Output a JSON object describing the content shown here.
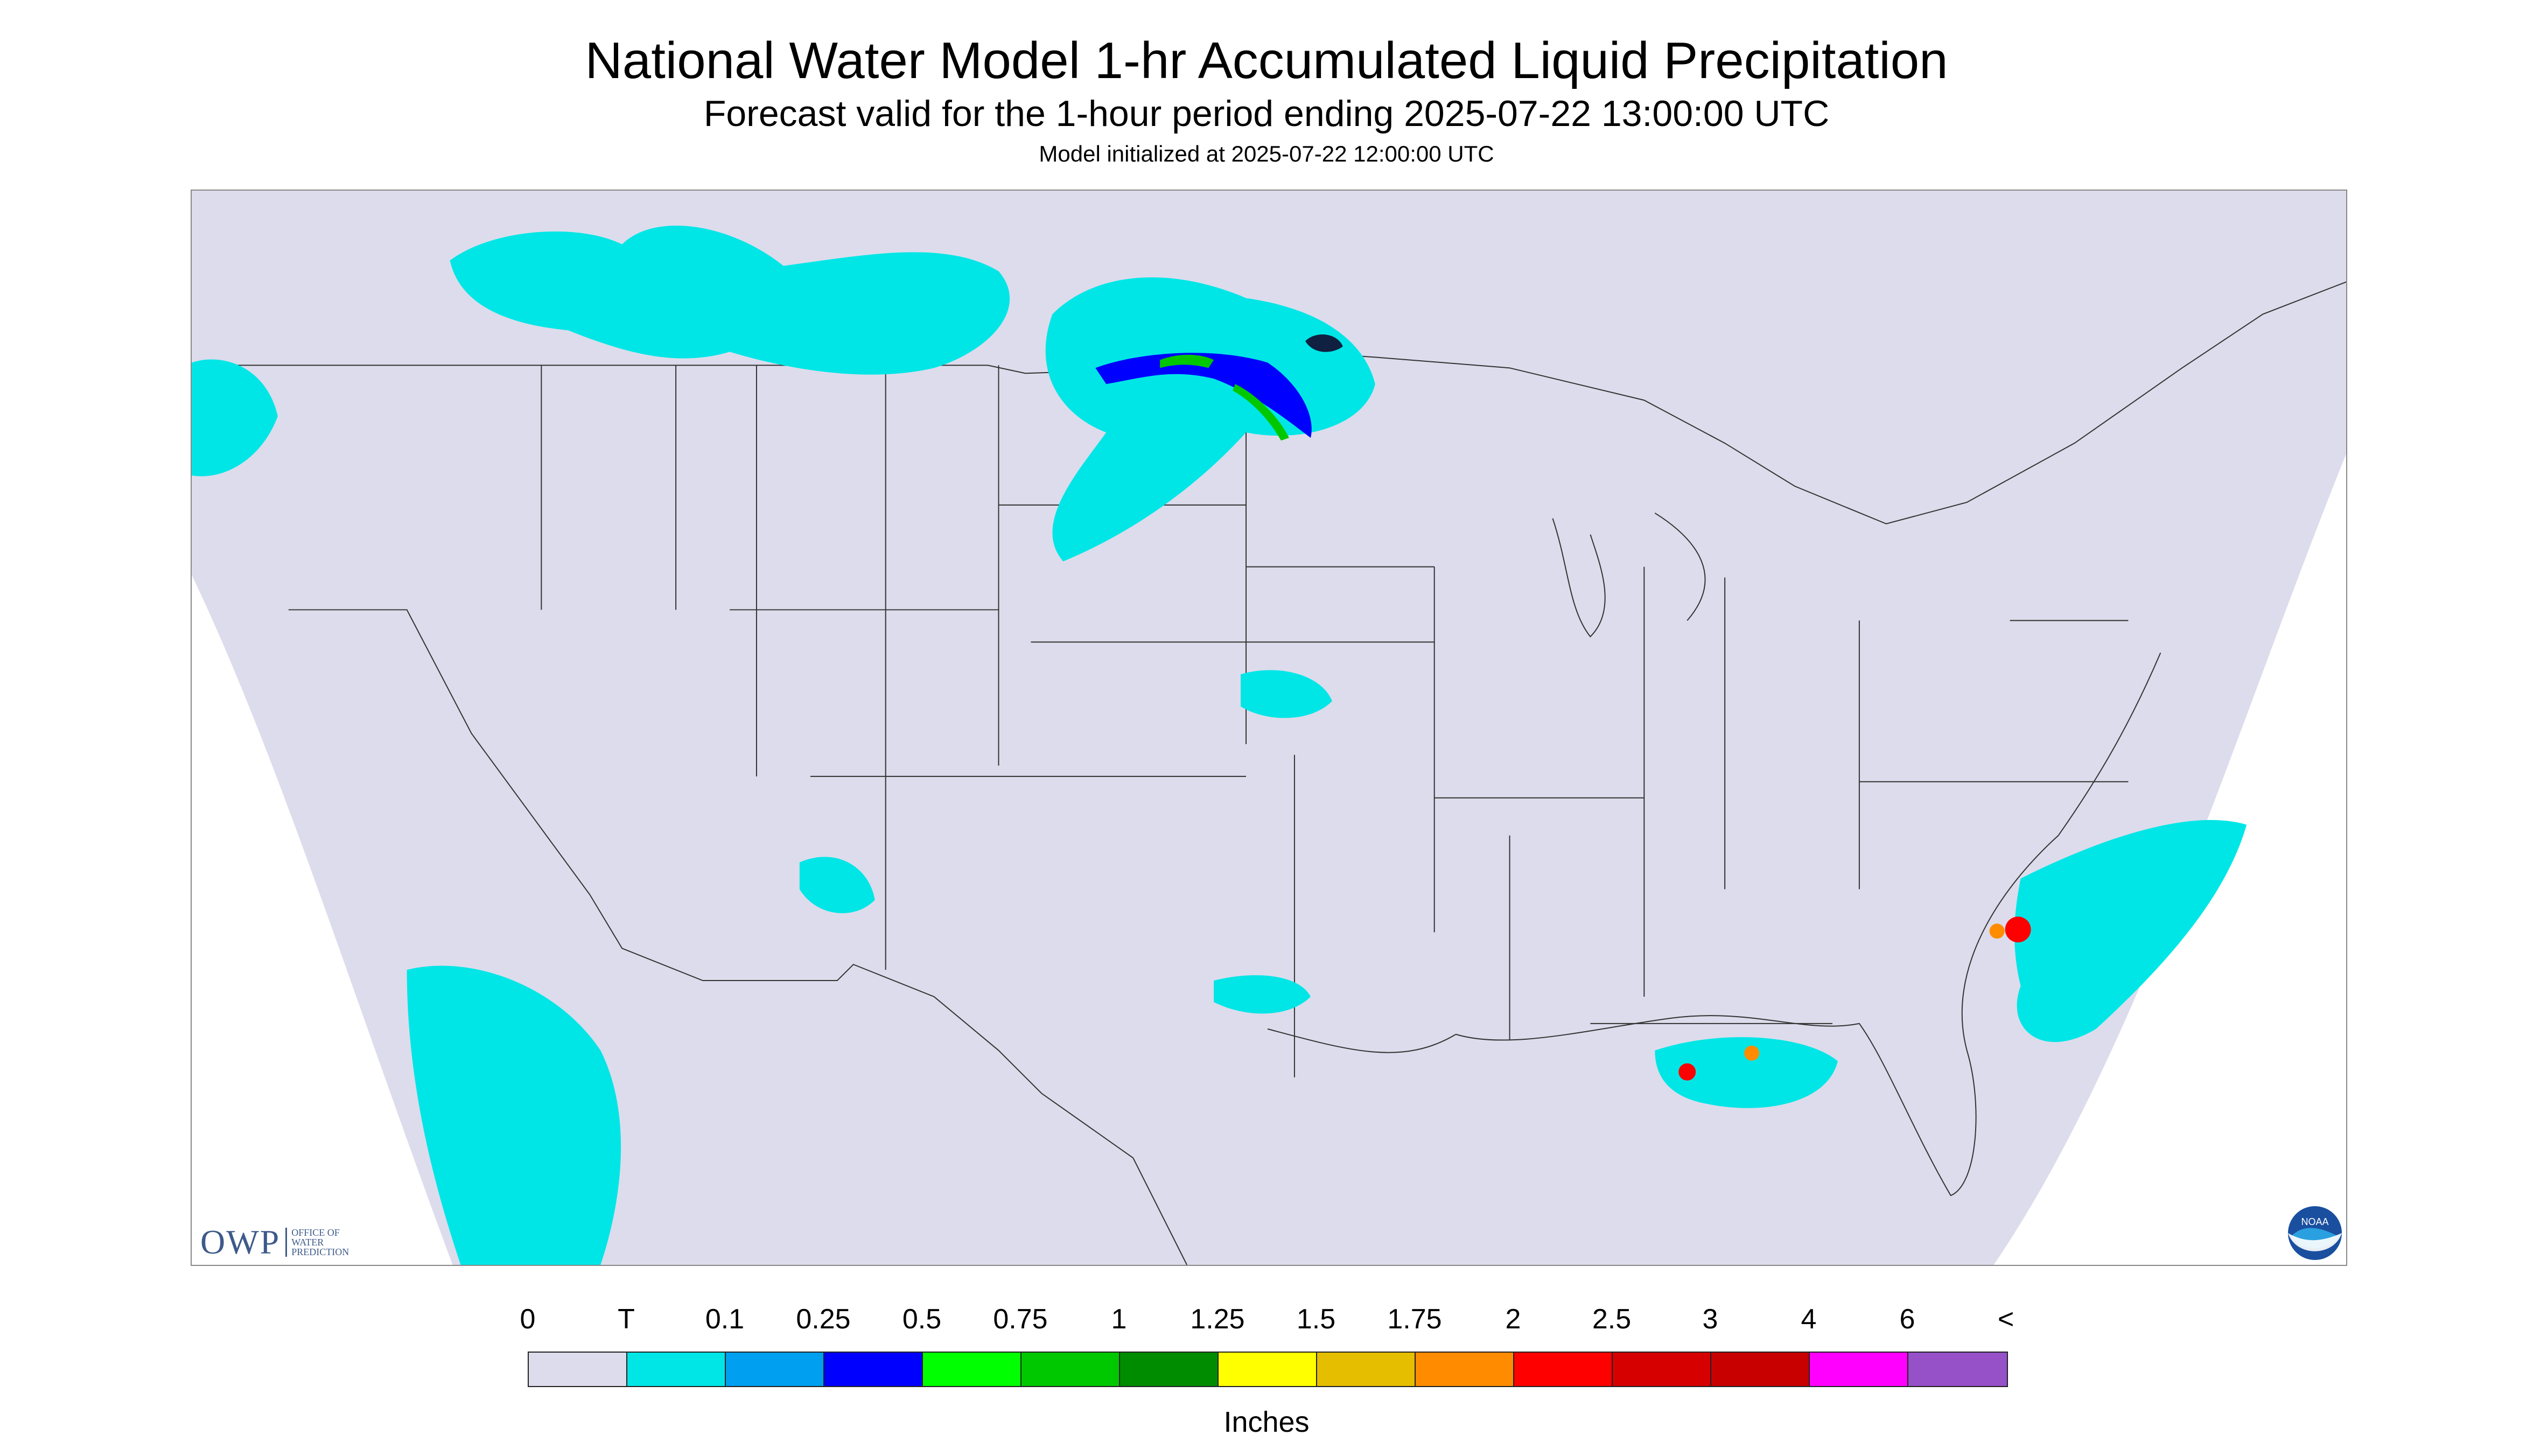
{
  "header": {
    "title": "National Water Model 1-hr Accumulated Liquid Precipitation",
    "subtitle": "Forecast valid for the 1-hour period ending 2025-07-22 13:00:00 UTC",
    "init": "Model initialized at 2025-07-22 12:00:00 UTC"
  },
  "legend": {
    "labels": [
      "0",
      "T",
      "0.1",
      "0.25",
      "0.5",
      "0.75",
      "1",
      "1.25",
      "1.5",
      "1.75",
      "2",
      "2.5",
      "3",
      "4",
      "6",
      "<"
    ],
    "colors": [
      "#dcdcec",
      "#00e6e6",
      "#009ff0",
      "#0000ff",
      "#00ff00",
      "#00c800",
      "#008c00",
      "#ffff00",
      "#e6be00",
      "#ff8c00",
      "#ff0000",
      "#d70000",
      "#c80000",
      "#ff00ff",
      "#9650c8"
    ],
    "units": "Inches"
  },
  "logos": {
    "owp_mark": "OWP",
    "owp_text": [
      "OFFICE OF",
      "WATER",
      "PREDICTION"
    ],
    "noaa_text": "NOAA"
  },
  "map": {
    "projection_bg": "#dcdcec",
    "outside_bg": "#ffffff",
    "precip_regions": [
      {
        "name": "northern-plains-band",
        "category": "T"
      },
      {
        "name": "minnesota-storm",
        "category": "0.75"
      },
      {
        "name": "southeast-atlantic",
        "category": "2.5"
      },
      {
        "name": "florida-west",
        "category": "2"
      }
    ]
  }
}
